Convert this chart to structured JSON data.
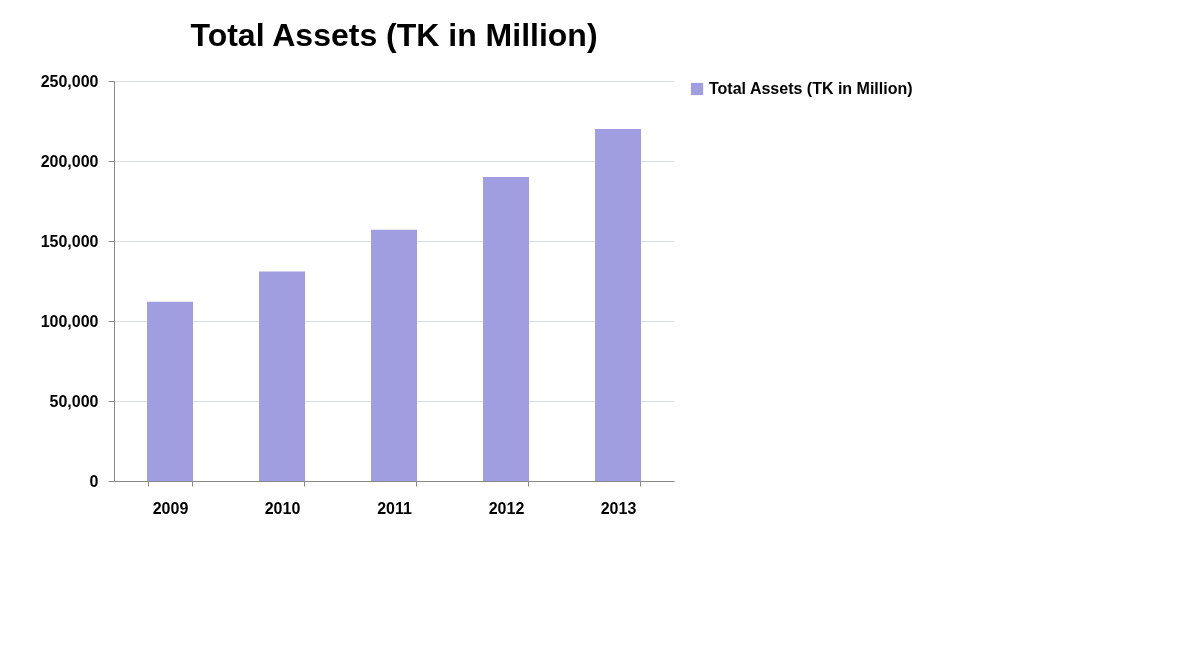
{
  "chart_data": {
    "type": "bar",
    "title": "Total Assets (TK in Million)",
    "categories": [
      "2009",
      "2010",
      "2011",
      "2012",
      "2013"
    ],
    "series": [
      {
        "name": "Total Assets (TK in Million)",
        "color": "#a09ee0",
        "values": [
          112000,
          131000,
          157000,
          190000,
          220000
        ]
      }
    ],
    "ylim": [
      0,
      250000
    ],
    "yticks": [
      0,
      {
        "value": 50000,
        "label": "50,000"
      },
      {
        "value": 100000,
        "label": "100,000"
      },
      {
        "value": 150000,
        "label": "150,000"
      },
      {
        "value": 200000,
        "label": "200,000"
      },
      {
        "value": 250000,
        "label": "250,000"
      }
    ],
    "grid": "y",
    "legend": "right"
  }
}
